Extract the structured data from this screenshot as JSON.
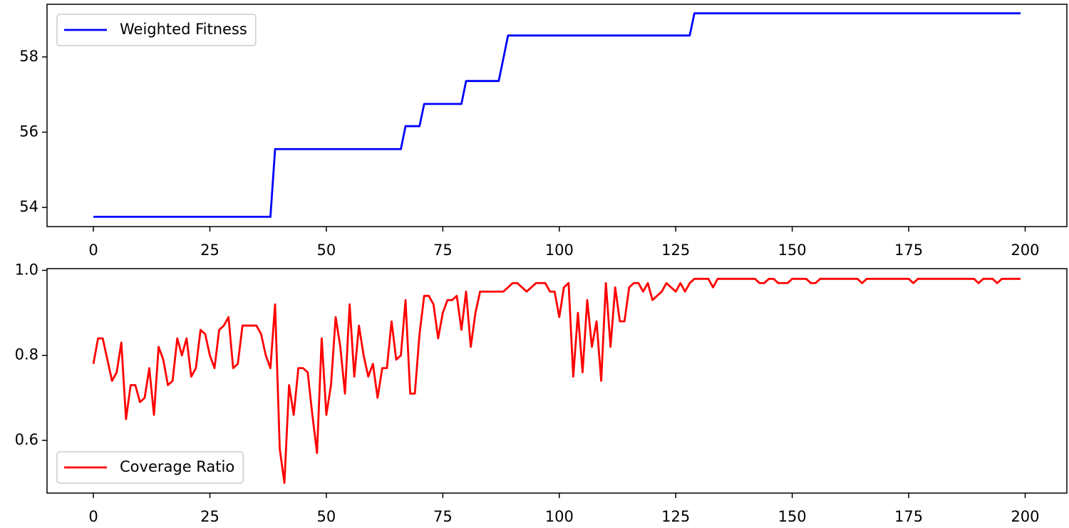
{
  "chart_data": [
    {
      "type": "line",
      "legend": "upper left",
      "grid": false,
      "xlim": [
        -9.95,
        208.95
      ],
      "xticks": [
        0,
        25,
        50,
        75,
        100,
        125,
        150,
        175,
        200
      ],
      "ylim": [
        53.49,
        59.4
      ],
      "yticks": [
        54,
        56,
        58
      ],
      "x": [
        0,
        1,
        2,
        3,
        4,
        5,
        6,
        7,
        8,
        9,
        10,
        11,
        12,
        13,
        14,
        15,
        16,
        17,
        18,
        19,
        20,
        21,
        22,
        23,
        24,
        25,
        26,
        27,
        28,
        29,
        30,
        31,
        32,
        33,
        34,
        35,
        36,
        37,
        38,
        39,
        40,
        41,
        42,
        43,
        44,
        45,
        46,
        47,
        48,
        49,
        50,
        51,
        52,
        53,
        54,
        55,
        56,
        57,
        58,
        59,
        60,
        61,
        62,
        63,
        64,
        65,
        66,
        67,
        68,
        69,
        70,
        71,
        72,
        73,
        74,
        75,
        76,
        77,
        78,
        79,
        80,
        81,
        82,
        83,
        84,
        85,
        86,
        87,
        88,
        89,
        90,
        91,
        92,
        93,
        94,
        95,
        96,
        97,
        98,
        99,
        100,
        101,
        102,
        103,
        104,
        105,
        106,
        107,
        108,
        109,
        110,
        111,
        112,
        113,
        114,
        115,
        116,
        117,
        118,
        119,
        120,
        121,
        122,
        123,
        124,
        125,
        126,
        127,
        128,
        129,
        130,
        131,
        132,
        133,
        134,
        135,
        136,
        137,
        138,
        139,
        140,
        141,
        142,
        143,
        144,
        145,
        146,
        147,
        148,
        149,
        150,
        151,
        152,
        153,
        154,
        155,
        156,
        157,
        158,
        159,
        160,
        161,
        162,
        163,
        164,
        165,
        166,
        167,
        168,
        169,
        170,
        171,
        172,
        173,
        174,
        175,
        176,
        177,
        178,
        179,
        180,
        181,
        182,
        183,
        184,
        185,
        186,
        187,
        188,
        189,
        190,
        191,
        192,
        193,
        194,
        195,
        196,
        197,
        198,
        199
      ],
      "series": [
        {
          "name": "Weighted Fitness",
          "color": "#0000ff",
          "values": [
            53.75,
            53.75,
            53.75,
            53.75,
            53.75,
            53.75,
            53.75,
            53.75,
            53.75,
            53.75,
            53.75,
            53.75,
            53.75,
            53.75,
            53.75,
            53.75,
            53.75,
            53.75,
            53.75,
            53.75,
            53.75,
            53.75,
            53.75,
            53.75,
            53.75,
            53.75,
            53.75,
            53.75,
            53.75,
            53.75,
            53.75,
            53.75,
            53.75,
            53.75,
            53.75,
            53.75,
            53.75,
            53.75,
            53.75,
            55.55,
            55.55,
            55.55,
            55.55,
            55.55,
            55.55,
            55.55,
            55.55,
            55.55,
            55.55,
            55.55,
            55.55,
            55.55,
            55.55,
            55.55,
            55.55,
            55.55,
            55.55,
            55.55,
            55.55,
            55.55,
            55.55,
            55.55,
            55.55,
            55.55,
            55.55,
            55.55,
            55.55,
            56.16,
            56.16,
            56.16,
            56.16,
            56.75,
            56.75,
            56.75,
            56.75,
            56.75,
            56.75,
            56.75,
            56.75,
            56.75,
            57.36,
            57.36,
            57.36,
            57.36,
            57.36,
            57.36,
            57.36,
            57.36,
            57.96,
            58.57,
            58.57,
            58.57,
            58.57,
            58.57,
            58.57,
            58.57,
            58.57,
            58.57,
            58.57,
            58.57,
            58.57,
            58.57,
            58.57,
            58.57,
            58.57,
            58.57,
            58.57,
            58.57,
            58.57,
            58.57,
            58.57,
            58.57,
            58.57,
            58.57,
            58.57,
            58.57,
            58.57,
            58.57,
            58.57,
            58.57,
            58.57,
            58.57,
            58.57,
            58.57,
            58.57,
            58.57,
            58.57,
            58.57,
            58.57,
            59.16,
            59.16,
            59.16,
            59.16,
            59.16,
            59.16,
            59.16,
            59.16,
            59.16,
            59.16,
            59.16,
            59.16,
            59.16,
            59.16,
            59.16,
            59.16,
            59.16,
            59.16,
            59.16,
            59.16,
            59.16,
            59.16,
            59.16,
            59.16,
            59.16,
            59.16,
            59.16,
            59.16,
            59.16,
            59.16,
            59.16,
            59.16,
            59.16,
            59.16,
            59.16,
            59.16,
            59.16,
            59.16,
            59.16,
            59.16,
            59.16,
            59.16,
            59.16,
            59.16,
            59.16,
            59.16,
            59.16,
            59.16,
            59.16,
            59.16,
            59.16,
            59.16,
            59.16,
            59.16,
            59.16,
            59.16,
            59.16,
            59.16,
            59.16,
            59.16,
            59.16,
            59.16,
            59.16,
            59.16,
            59.16,
            59.16,
            59.16,
            59.16,
            59.16,
            59.16,
            59.16
          ]
        }
      ]
    },
    {
      "type": "line",
      "legend": "lower left",
      "grid": false,
      "xlim": [
        -9.95,
        208.95
      ],
      "xticks": [
        0,
        25,
        50,
        75,
        100,
        125,
        150,
        175,
        200
      ],
      "ylim": [
        0.476,
        1.004
      ],
      "yticks": [
        0.6,
        0.8,
        {
          "value": 1,
          "label": "1.0"
        }
      ],
      "x": [
        0,
        1,
        2,
        3,
        4,
        5,
        6,
        7,
        8,
        9,
        10,
        11,
        12,
        13,
        14,
        15,
        16,
        17,
        18,
        19,
        20,
        21,
        22,
        23,
        24,
        25,
        26,
        27,
        28,
        29,
        30,
        31,
        32,
        33,
        34,
        35,
        36,
        37,
        38,
        39,
        40,
        41,
        42,
        43,
        44,
        45,
        46,
        47,
        48,
        49,
        50,
        51,
        52,
        53,
        54,
        55,
        56,
        57,
        58,
        59,
        60,
        61,
        62,
        63,
        64,
        65,
        66,
        67,
        68,
        69,
        70,
        71,
        72,
        73,
        74,
        75,
        76,
        77,
        78,
        79,
        80,
        81,
        82,
        83,
        84,
        85,
        86,
        87,
        88,
        89,
        90,
        91,
        92,
        93,
        94,
        95,
        96,
        97,
        98,
        99,
        100,
        101,
        102,
        103,
        104,
        105,
        106,
        107,
        108,
        109,
        110,
        111,
        112,
        113,
        114,
        115,
        116,
        117,
        118,
        119,
        120,
        121,
        122,
        123,
        124,
        125,
        126,
        127,
        128,
        129,
        130,
        131,
        132,
        133,
        134,
        135,
        136,
        137,
        138,
        139,
        140,
        141,
        142,
        143,
        144,
        145,
        146,
        147,
        148,
        149,
        150,
        151,
        152,
        153,
        154,
        155,
        156,
        157,
        158,
        159,
        160,
        161,
        162,
        163,
        164,
        165,
        166,
        167,
        168,
        169,
        170,
        171,
        172,
        173,
        174,
        175,
        176,
        177,
        178,
        179,
        180,
        181,
        182,
        183,
        184,
        185,
        186,
        187,
        188,
        189,
        190,
        191,
        192,
        193,
        194,
        195,
        196,
        197,
        198,
        199
      ],
      "series": [
        {
          "name": "Coverage Ratio",
          "color": "#ff0000",
          "values": [
            0.78,
            0.84,
            0.84,
            0.79,
            0.74,
            0.76,
            0.83,
            0.65,
            0.73,
            0.73,
            0.69,
            0.7,
            0.77,
            0.66,
            0.82,
            0.79,
            0.73,
            0.74,
            0.84,
            0.8,
            0.84,
            0.75,
            0.77,
            0.86,
            0.85,
            0.8,
            0.77,
            0.86,
            0.87,
            0.89,
            0.77,
            0.78,
            0.87,
            0.87,
            0.87,
            0.87,
            0.85,
            0.8,
            0.77,
            0.92,
            0.58,
            0.5,
            0.73,
            0.66,
            0.77,
            0.77,
            0.76,
            0.66,
            0.57,
            0.84,
            0.66,
            0.73,
            0.89,
            0.82,
            0.71,
            0.92,
            0.75,
            0.87,
            0.8,
            0.75,
            0.78,
            0.7,
            0.77,
            0.77,
            0.88,
            0.79,
            0.8,
            0.93,
            0.71,
            0.71,
            0.85,
            0.94,
            0.94,
            0.92,
            0.84,
            0.9,
            0.93,
            0.93,
            0.94,
            0.86,
            0.95,
            0.82,
            0.9,
            0.95,
            0.95,
            0.95,
            0.95,
            0.95,
            0.95,
            0.96,
            0.97,
            0.97,
            0.96,
            0.95,
            0.96,
            0.97,
            0.97,
            0.97,
            0.95,
            0.95,
            0.89,
            0.96,
            0.97,
            0.75,
            0.9,
            0.76,
            0.93,
            0.82,
            0.88,
            0.74,
            0.97,
            0.82,
            0.96,
            0.88,
            0.88,
            0.96,
            0.97,
            0.97,
            0.95,
            0.97,
            0.93,
            0.94,
            0.95,
            0.97,
            0.96,
            0.95,
            0.97,
            0.95,
            0.97,
            0.98,
            0.98,
            0.98,
            0.98,
            0.96,
            0.98,
            0.98,
            0.98,
            0.98,
            0.98,
            0.98,
            0.98,
            0.98,
            0.98,
            0.97,
            0.97,
            0.98,
            0.98,
            0.97,
            0.97,
            0.97,
            0.98,
            0.98,
            0.98,
            0.98,
            0.97,
            0.97,
            0.98,
            0.98,
            0.98,
            0.98,
            0.98,
            0.98,
            0.98,
            0.98,
            0.98,
            0.97,
            0.98,
            0.98,
            0.98,
            0.98,
            0.98,
            0.98,
            0.98,
            0.98,
            0.98,
            0.98,
            0.97,
            0.98,
            0.98,
            0.98,
            0.98,
            0.98,
            0.98,
            0.98,
            0.98,
            0.98,
            0.98,
            0.98,
            0.98,
            0.98,
            0.97,
            0.98,
            0.98,
            0.98,
            0.97,
            0.98,
            0.98,
            0.98,
            0.98,
            0.98
          ]
        }
      ]
    }
  ]
}
